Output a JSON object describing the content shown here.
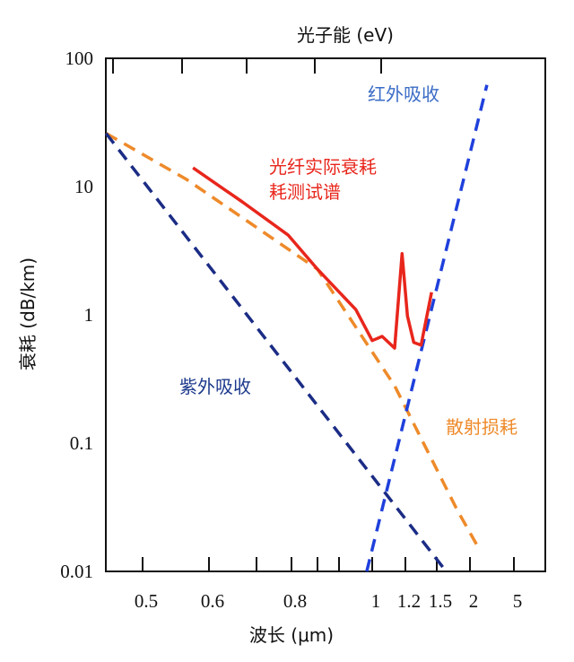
{
  "chart_data": {
    "type": "line",
    "top_axis_label": "光子能 (eV)",
    "xlabel": "波长 (μm)",
    "ylabel": "衰耗 (dB/km)",
    "yscale": "log",
    "ylim": [
      0.01,
      100
    ],
    "xlim": [
      0.445,
      6
    ],
    "grid": false,
    "x_ticks": [
      {
        "value": 0.5,
        "label": "0.5"
      },
      {
        "value": 0.6,
        "label": "0.6"
      },
      {
        "value": 0.8,
        "label": "0.8"
      },
      {
        "value": 1,
        "label": "1"
      },
      {
        "value": 1.2,
        "label": "1.2"
      },
      {
        "value": 1.5,
        "label": "1.5"
      },
      {
        "value": 2,
        "label": "2"
      },
      {
        "value": 5,
        "label": "5"
      }
    ],
    "y_ticks": [
      {
        "value": 100,
        "label": "100"
      },
      {
        "value": 10,
        "label": "10"
      },
      {
        "value": 1,
        "label": "1"
      },
      {
        "value": 0.1,
        "label": "0.1"
      },
      {
        "value": 0.01,
        "label": "0.01"
      }
    ],
    "series": [
      {
        "name": "光纤实际衰耗测试谱",
        "style": "solid",
        "color": "#e8261c",
        "x": [
          0.576,
          0.67,
          0.79,
          0.9,
          0.97,
          1.0,
          1.06,
          1.135,
          1.18,
          1.22,
          1.28,
          1.35,
          1.45
        ],
        "y": [
          14,
          7.6,
          4.2,
          2.27,
          1.1,
          0.63,
          0.68,
          0.55,
          3.0,
          0.98,
          0.61,
          0.58,
          1.5
        ]
      },
      {
        "name": "散射损耗",
        "style": "dashed",
        "color": "#ee8a2a",
        "x": [
          0.445,
          0.566,
          0.9,
          1.135,
          1.81,
          2.55
        ],
        "y": [
          26,
          11.4,
          2.27,
          0.28,
          0.03,
          0.0155
        ]
      },
      {
        "name": "紫外吸收",
        "style": "dashed",
        "color": "#1b2c85",
        "x": [
          0.445,
          1.64
        ],
        "y": [
          26,
          0.01
        ]
      },
      {
        "name": "红外吸收",
        "style": "dashed",
        "color": "#1f40dc",
        "x": [
          0.99,
          3.16
        ],
        "y": [
          0.01,
          62
        ]
      }
    ],
    "annotations": {
      "ir": {
        "text": "红外吸收",
        "color": "#3a6cc6"
      },
      "measured_line1": {
        "text": "光纤实际衰耗",
        "color": "#e8261c"
      },
      "measured_line2": {
        "text": "耗测试谱",
        "color": "#e8261c"
      },
      "uv": {
        "text": "紫外吸收",
        "color": "#1c3a8c"
      },
      "scatter": {
        "text": "散射损耗",
        "color": "#ee8a2a"
      }
    }
  }
}
